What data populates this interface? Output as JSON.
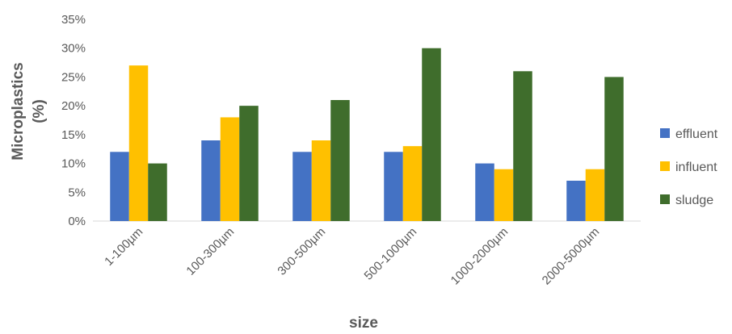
{
  "chart_data": {
    "type": "bar",
    "title": "",
    "xlabel": "size",
    "ylabel_lines": [
      "Microplastics",
      "(%)"
    ],
    "categories": [
      "1-100µm",
      "100-300µm",
      "300-500µm",
      "500-1000µm",
      "1000-2000µm",
      "2000-5000µm"
    ],
    "series": [
      {
        "name": "effluent",
        "color": "#4472C4",
        "values": [
          12,
          14,
          12,
          12,
          10,
          7
        ]
      },
      {
        "name": "influent",
        "color": "#FFC000",
        "values": [
          27,
          18,
          14,
          13,
          9,
          9
        ]
      },
      {
        "name": "sludge",
        "color": "#3F6D2C",
        "values": [
          10,
          20,
          21,
          30,
          26,
          25
        ]
      }
    ],
    "ylim": [
      0,
      35
    ],
    "y_ticks": [
      "0%",
      "5%",
      "10%",
      "15%",
      "20%",
      "25%",
      "30%",
      "35%"
    ],
    "grid": false,
    "legend_position": "right"
  }
}
